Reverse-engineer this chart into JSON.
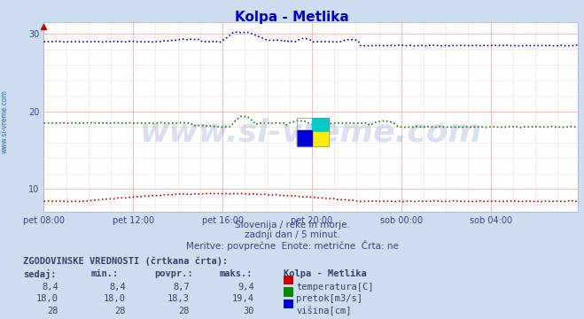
{
  "title": "Kolpa - Metlika",
  "title_color": "#0000cc",
  "bg_color": "#ccddf0",
  "plot_bg_color": "#ffffff",
  "grid_color_major": "#ffaaaa",
  "grid_color_minor": "#ffd8d8",
  "xlabel_ticks": [
    "pet 08:00",
    "pet 12:00",
    "pet 16:00",
    "pet 20:00",
    "sob 00:00",
    "sob 04:00"
  ],
  "ylim": [
    7.0,
    31.5
  ],
  "xlim": [
    0,
    287
  ],
  "subtitle_lines": [
    "Slovenija / reke in morje.",
    "zadnji dan / 5 minut.",
    "Meritve: povprečne  Enote: metrične  Črta: ne"
  ],
  "table_header": "ZGODOVINSKE VREDNOSTI (črtkana črta):",
  "table_cols": [
    "sedaj:",
    "min.:",
    "povpr.:",
    "maks.:",
    "Kolpa - Metlika"
  ],
  "table_rows": [
    [
      "8,4",
      "8,4",
      "8,7",
      "9,4",
      "temperatura[C]",
      "#cc0000"
    ],
    [
      "18,0",
      "18,0",
      "18,3",
      "19,4",
      "pretok[m3/s]",
      "#008800"
    ],
    [
      "28",
      "28",
      "28",
      "30",
      "višina[cm]",
      "#0000cc"
    ]
  ],
  "watermark": "www.si-vreme.com",
  "watermark_color": "#3355aa",
  "watermark_alpha": 0.18,
  "temp_color": "#cc0000",
  "flow_color": "#008800",
  "height_color": "#0000cc",
  "n_points": 288,
  "left_label_color": "#3366aa"
}
